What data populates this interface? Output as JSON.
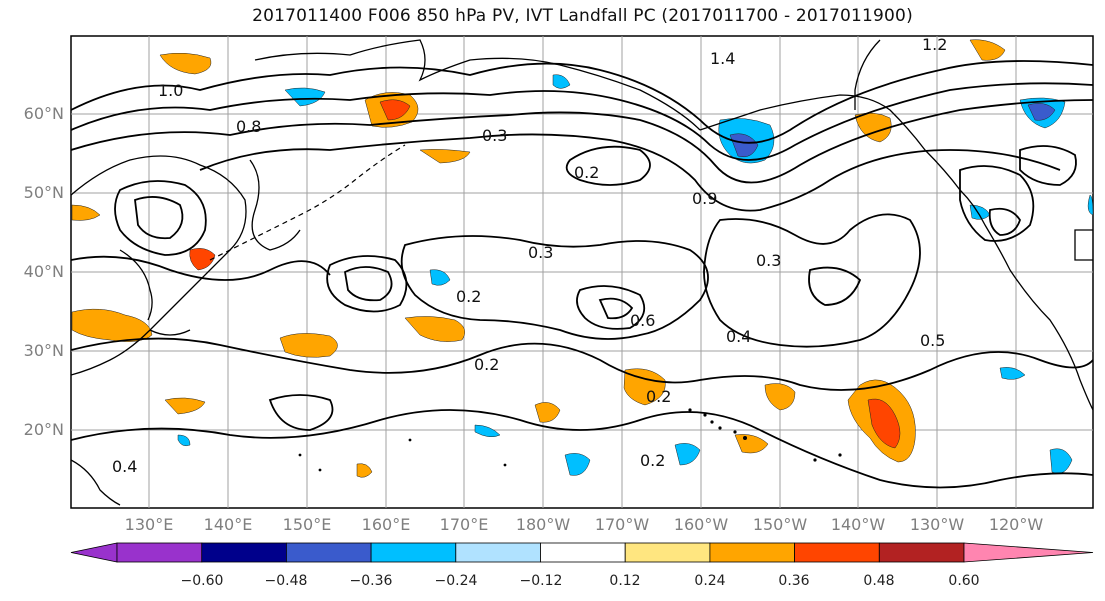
{
  "title": "2017011400 F006 850 hPa PV, IVT Landfall PC (2017011700 - 2017011900)",
  "lat_labels": [
    "60°N",
    "50°N",
    "40°N",
    "30°N",
    "20°N"
  ],
  "lon_labels": [
    "130°E",
    "140°E",
    "150°E",
    "160°E",
    "170°E",
    "180°W",
    "170°W",
    "160°W",
    "150°W",
    "140°W",
    "130°W",
    "120°W"
  ],
  "contour_labels": [
    "0.3",
    "0.2",
    "0.3",
    "0.3",
    "0.2",
    "0.4",
    "0.5",
    "0.6",
    "0.2",
    "0.2",
    "0.2",
    "0.4",
    "1.0",
    "1.4",
    "1.2",
    "0.8",
    "0.9"
  ],
  "colorbar": {
    "ticks": [
      "−0.60",
      "−0.48",
      "−0.36",
      "−0.24",
      "−0.12",
      "0.12",
      "0.24",
      "0.36",
      "0.48",
      "0.60"
    ],
    "colors": [
      "#9932cc",
      "#00008b",
      "#3a5bcc",
      "#00bfff",
      "#b0e2ff",
      "#ffffff",
      "#ffe680",
      "#ffa500",
      "#ff4500",
      "#b22222",
      "#ff85b0"
    ]
  },
  "colors": {
    "land": "#000000",
    "grid": "#a0a0a0",
    "contour": "#000000",
    "label_gray": "#7f7f7f"
  }
}
